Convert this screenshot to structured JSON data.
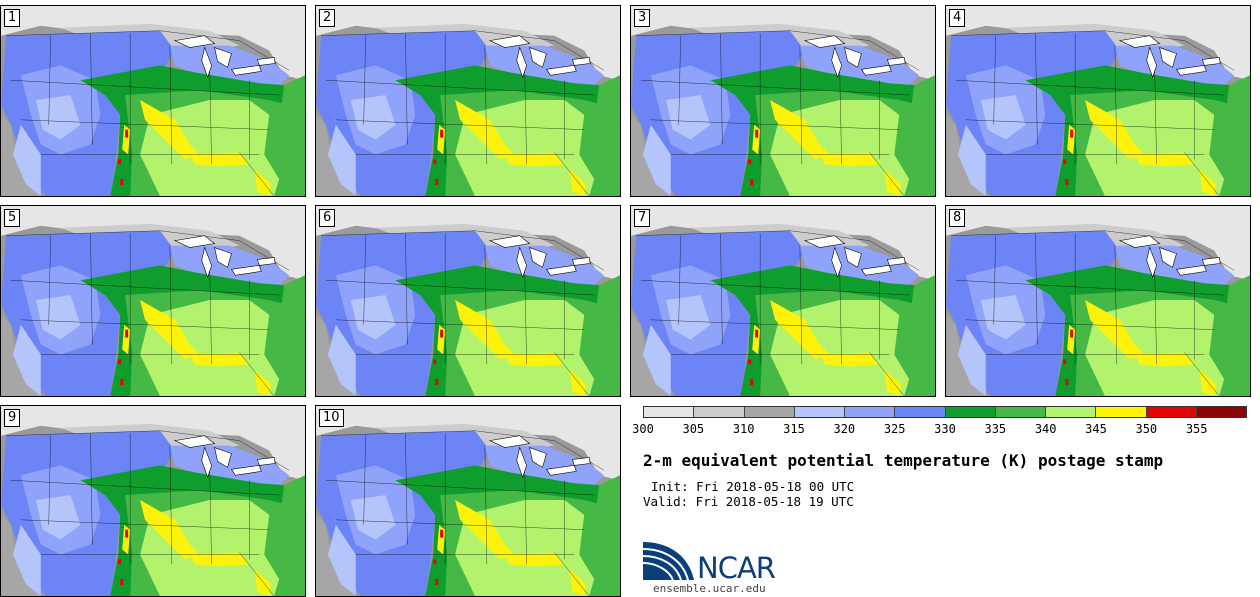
{
  "stamps": [
    {
      "label": "1"
    },
    {
      "label": "2"
    },
    {
      "label": "3"
    },
    {
      "label": "4"
    },
    {
      "label": "5"
    },
    {
      "label": "6"
    },
    {
      "label": "7"
    },
    {
      "label": "8"
    },
    {
      "label": "9"
    },
    {
      "label": "10"
    }
  ],
  "colorbar": {
    "colors": [
      "#e6e6e6",
      "#cccccc",
      "#a6a6a6",
      "#b3c5fb",
      "#8ea3f9",
      "#6d84f6",
      "#0f9d2d",
      "#45b845",
      "#b2f26c",
      "#fcf20a",
      "#e30505",
      "#8b0505"
    ],
    "labels": [
      "300",
      "305",
      "310",
      "315",
      "320",
      "325",
      "330",
      "335",
      "340",
      "345",
      "350",
      "355"
    ]
  },
  "title": "2-m equivalent potential temperature (K) postage stamp",
  "init": "Init: Fri 2018-05-18 00 UTC",
  "valid": "Valid: Fri 2018-05-18 19 UTC",
  "logo": {
    "text": "NCAR",
    "colors": {
      "blue": "#0c3f7a",
      "light": "#4a90d9"
    }
  },
  "website": "ensemble.ucar.edu"
}
